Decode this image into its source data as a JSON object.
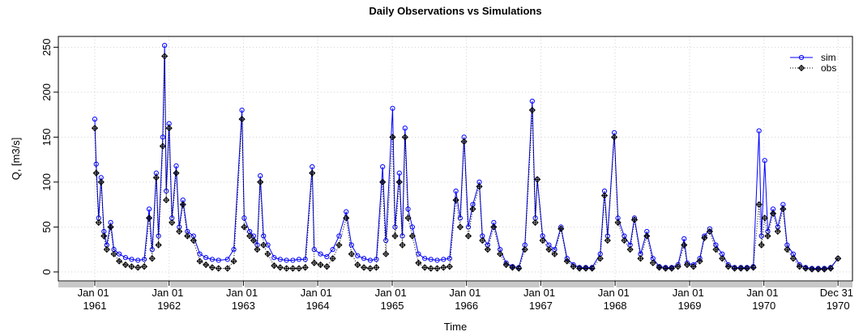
{
  "chart_data": {
    "type": "line",
    "title": "Daily Observations vs Simulations",
    "x_label": "Time",
    "y_label": "Q, [m3/s]",
    "x": [
      "1961-01-01",
      "1961-01-08",
      "1961-01-20",
      "1961-02-01",
      "1961-02-15",
      "1961-03-01",
      "1961-03-20",
      "1961-04-05",
      "1961-05-01",
      "1961-06-01",
      "1961-07-01",
      "1961-08-01",
      "1961-09-01",
      "1961-09-25",
      "1961-10-10",
      "1961-10-30",
      "1961-11-10",
      "1961-12-01",
      "1961-12-10",
      "1961-12-18",
      "1962-01-01",
      "1962-01-15",
      "1962-02-05",
      "1962-02-20",
      "1962-03-10",
      "1962-04-01",
      "1962-05-01",
      "1962-06-01",
      "1962-07-01",
      "1962-08-01",
      "1962-09-01",
      "1962-10-15",
      "1962-11-15",
      "1962-12-25",
      "1963-01-05",
      "1963-02-01",
      "1963-02-20",
      "1963-03-10",
      "1963-03-25",
      "1963-04-10",
      "1963-05-01",
      "1963-06-01",
      "1963-07-01",
      "1963-08-01",
      "1963-09-01",
      "1963-10-01",
      "1963-11-01",
      "1963-12-05",
      "1963-12-15",
      "1964-01-15",
      "1964-02-15",
      "1964-03-15",
      "1964-04-15",
      "1964-05-20",
      "1964-06-15",
      "1964-07-15",
      "1964-08-15",
      "1964-09-15",
      "1964-10-15",
      "1964-11-15",
      "1964-12-01",
      "1965-01-03",
      "1965-01-15",
      "1965-02-05",
      "1965-02-20",
      "1965-03-05",
      "1965-03-20",
      "1965-04-10",
      "1965-05-10",
      "1965-06-10",
      "1965-07-10",
      "1965-08-10",
      "1965-09-10",
      "1965-10-10",
      "1965-11-10",
      "1965-12-01",
      "1965-12-20",
      "1966-01-10",
      "1966-02-01",
      "1966-03-05",
      "1966-03-20",
      "1966-04-15",
      "1966-05-15",
      "1966-06-15",
      "1966-07-15",
      "1966-08-15",
      "1966-09-15",
      "1966-10-15",
      "1966-11-20",
      "1966-12-05",
      "1966-12-15",
      "1967-01-10",
      "1967-02-10",
      "1967-03-10",
      "1967-04-10",
      "1967-05-10",
      "1967-06-10",
      "1967-07-10",
      "1967-08-10",
      "1967-09-10",
      "1967-10-20",
      "1967-11-10",
      "1967-11-25",
      "1967-12-28",
      "1968-01-15",
      "1968-02-15",
      "1968-03-15",
      "1968-04-05",
      "1968-05-05",
      "1968-06-05",
      "1968-07-05",
      "1968-08-05",
      "1968-09-05",
      "1968-10-05",
      "1968-11-05",
      "1968-12-05",
      "1968-12-20",
      "1969-01-20",
      "1969-02-20",
      "1969-03-15",
      "1969-04-10",
      "1969-05-10",
      "1969-06-10",
      "1969-07-10",
      "1969-08-10",
      "1969-09-10",
      "1969-10-10",
      "1969-11-10",
      "1969-12-08",
      "1969-12-20",
      "1970-01-05",
      "1970-01-20",
      "1970-02-15",
      "1970-03-10",
      "1970-04-05",
      "1970-04-25",
      "1970-05-25",
      "1970-06-25",
      "1970-07-25",
      "1970-08-25",
      "1970-09-25",
      "1970-10-25",
      "1970-11-25",
      "1970-12-31"
    ],
    "series": [
      {
        "name": "sim",
        "color": "#0000ff",
        "marker": "circle",
        "dash": "solid",
        "values": [
          170,
          120,
          60,
          105,
          45,
          30,
          55,
          25,
          20,
          16,
          14,
          13,
          14,
          70,
          25,
          110,
          40,
          150,
          252,
          90,
          165,
          60,
          118,
          50,
          80,
          45,
          40,
          20,
          16,
          14,
          13,
          14,
          25,
          180,
          60,
          45,
          40,
          30,
          107,
          40,
          30,
          16,
          14,
          13,
          13,
          14,
          14,
          117,
          25,
          20,
          17,
          25,
          40,
          67,
          30,
          18,
          15,
          13,
          14,
          117,
          35,
          182,
          50,
          110,
          40,
          160,
          70,
          50,
          20,
          15,
          14,
          13,
          14,
          15,
          90,
          60,
          150,
          50,
          75,
          100,
          40,
          30,
          55,
          25,
          10,
          6,
          5,
          30,
          190,
          60,
          103,
          40,
          30,
          25,
          50,
          15,
          8,
          5,
          5,
          5,
          20,
          90,
          40,
          155,
          60,
          40,
          30,
          60,
          20,
          45,
          15,
          6,
          5,
          5,
          8,
          37,
          10,
          8,
          15,
          40,
          48,
          30,
          20,
          8,
          5,
          5,
          5,
          6,
          157,
          40,
          124,
          45,
          70,
          50,
          75,
          30,
          20,
          8,
          5,
          4,
          4,
          4,
          5,
          15
        ]
      },
      {
        "name": "obs",
        "color": "#000000",
        "marker": "diamond-cross",
        "dash": "dotted",
        "values": [
          160,
          110,
          55,
          100,
          40,
          25,
          50,
          20,
          12,
          8,
          6,
          5,
          6,
          60,
          15,
          105,
          30,
          140,
          240,
          80,
          160,
          55,
          110,
          45,
          75,
          40,
          35,
          12,
          8,
          5,
          4,
          4,
          12,
          170,
          50,
          40,
          35,
          25,
          100,
          30,
          20,
          7,
          5,
          4,
          4,
          4,
          5,
          110,
          10,
          8,
          6,
          15,
          30,
          60,
          20,
          8,
          5,
          4,
          5,
          100,
          20,
          150,
          40,
          100,
          30,
          150,
          60,
          40,
          10,
          5,
          4,
          4,
          5,
          6,
          80,
          50,
          145,
          40,
          70,
          95,
          35,
          25,
          50,
          20,
          8,
          5,
          4,
          25,
          180,
          55,
          103,
          35,
          25,
          20,
          48,
          12,
          6,
          4,
          4,
          4,
          15,
          85,
          35,
          150,
          55,
          35,
          25,
          58,
          15,
          40,
          10,
          5,
          4,
          4,
          6,
          30,
          8,
          6,
          12,
          38,
          45,
          25,
          15,
          6,
          4,
          4,
          4,
          5,
          75,
          30,
          60,
          40,
          65,
          45,
          70,
          25,
          15,
          6,
          4,
          3,
          3,
          3,
          4,
          15
        ]
      }
    ],
    "xlim": [
      "1960-07-06",
      "1971-03-12"
    ],
    "xticks": [
      {
        "value": "1961-01-01",
        "label": "Jan 01 1961"
      },
      {
        "value": "1962-01-01",
        "label": "Jan 01 1962"
      },
      {
        "value": "1963-01-01",
        "label": "Jan 01 1963"
      },
      {
        "value": "1964-01-01",
        "label": "Jan 01 1964"
      },
      {
        "value": "1965-01-01",
        "label": "Jan 01 1965"
      },
      {
        "value": "1966-01-01",
        "label": "Jan 01 1966"
      },
      {
        "value": "1967-01-01",
        "label": "Jan 01 1967"
      },
      {
        "value": "1968-01-01",
        "label": "Jan 01 1968"
      },
      {
        "value": "1969-01-01",
        "label": "Jan 01 1969"
      },
      {
        "value": "1970-01-01",
        "label": "Jan 01 1970"
      },
      {
        "value": "1970-12-31",
        "label": "Dec 31 1970"
      }
    ],
    "ylim": [
      -10,
      262
    ],
    "yticks": [
      0,
      50,
      100,
      150,
      200,
      250
    ],
    "grid": true,
    "legend": "topright"
  }
}
